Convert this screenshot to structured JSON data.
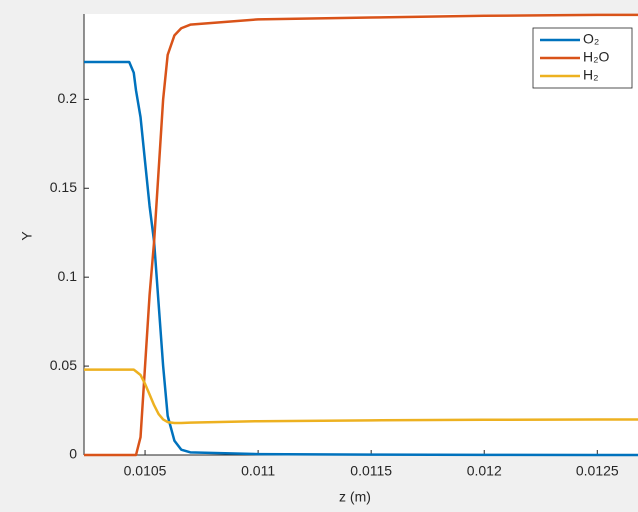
{
  "chart_data": {
    "type": "line",
    "x_label": "z (m)",
    "y_label": "Y",
    "x": [
      0.01023,
      0.0104,
      0.01043,
      0.01045,
      0.01046,
      0.01048,
      0.0105,
      0.01052,
      0.01054,
      0.01056,
      0.01058,
      0.0106,
      0.01063,
      0.01066,
      0.0107,
      0.011,
      0.0115,
      0.012,
      0.0125,
      0.01268
    ],
    "series": [
      {
        "name": "O₂",
        "color": "#0072BD",
        "values": [
          0.221,
          0.221,
          0.221,
          0.215,
          0.205,
          0.19,
          0.165,
          0.14,
          0.12,
          0.085,
          0.05,
          0.022,
          0.008,
          0.003,
          0.0015,
          0.0005,
          0.0002,
          0.0001,
          0,
          0
        ]
      },
      {
        "name": "H₂O",
        "color": "#D95319",
        "values": [
          0,
          0,
          0,
          0,
          0,
          0.01,
          0.05,
          0.09,
          0.12,
          0.16,
          0.2,
          0.225,
          0.236,
          0.24,
          0.242,
          0.245,
          0.246,
          0.247,
          0.2475,
          0.2475
        ]
      },
      {
        "name": "H₂",
        "color": "#EDB120",
        "values": [
          0.048,
          0.048,
          0.048,
          0.048,
          0.047,
          0.045,
          0.04,
          0.034,
          0.028,
          0.023,
          0.02,
          0.0185,
          0.018,
          0.018,
          0.0182,
          0.019,
          0.0195,
          0.0198,
          0.02,
          0.02
        ]
      }
    ],
    "xlim": [
      0.01023,
      0.01268
    ],
    "xticks": [
      0.0105,
      0.011,
      0.0115,
      0.012,
      0.0125
    ],
    "ylim": [
      0,
      0.248
    ],
    "yticks": [
      0,
      0.05,
      0.1,
      0.15,
      0.2
    ],
    "legend": "top-right"
  }
}
